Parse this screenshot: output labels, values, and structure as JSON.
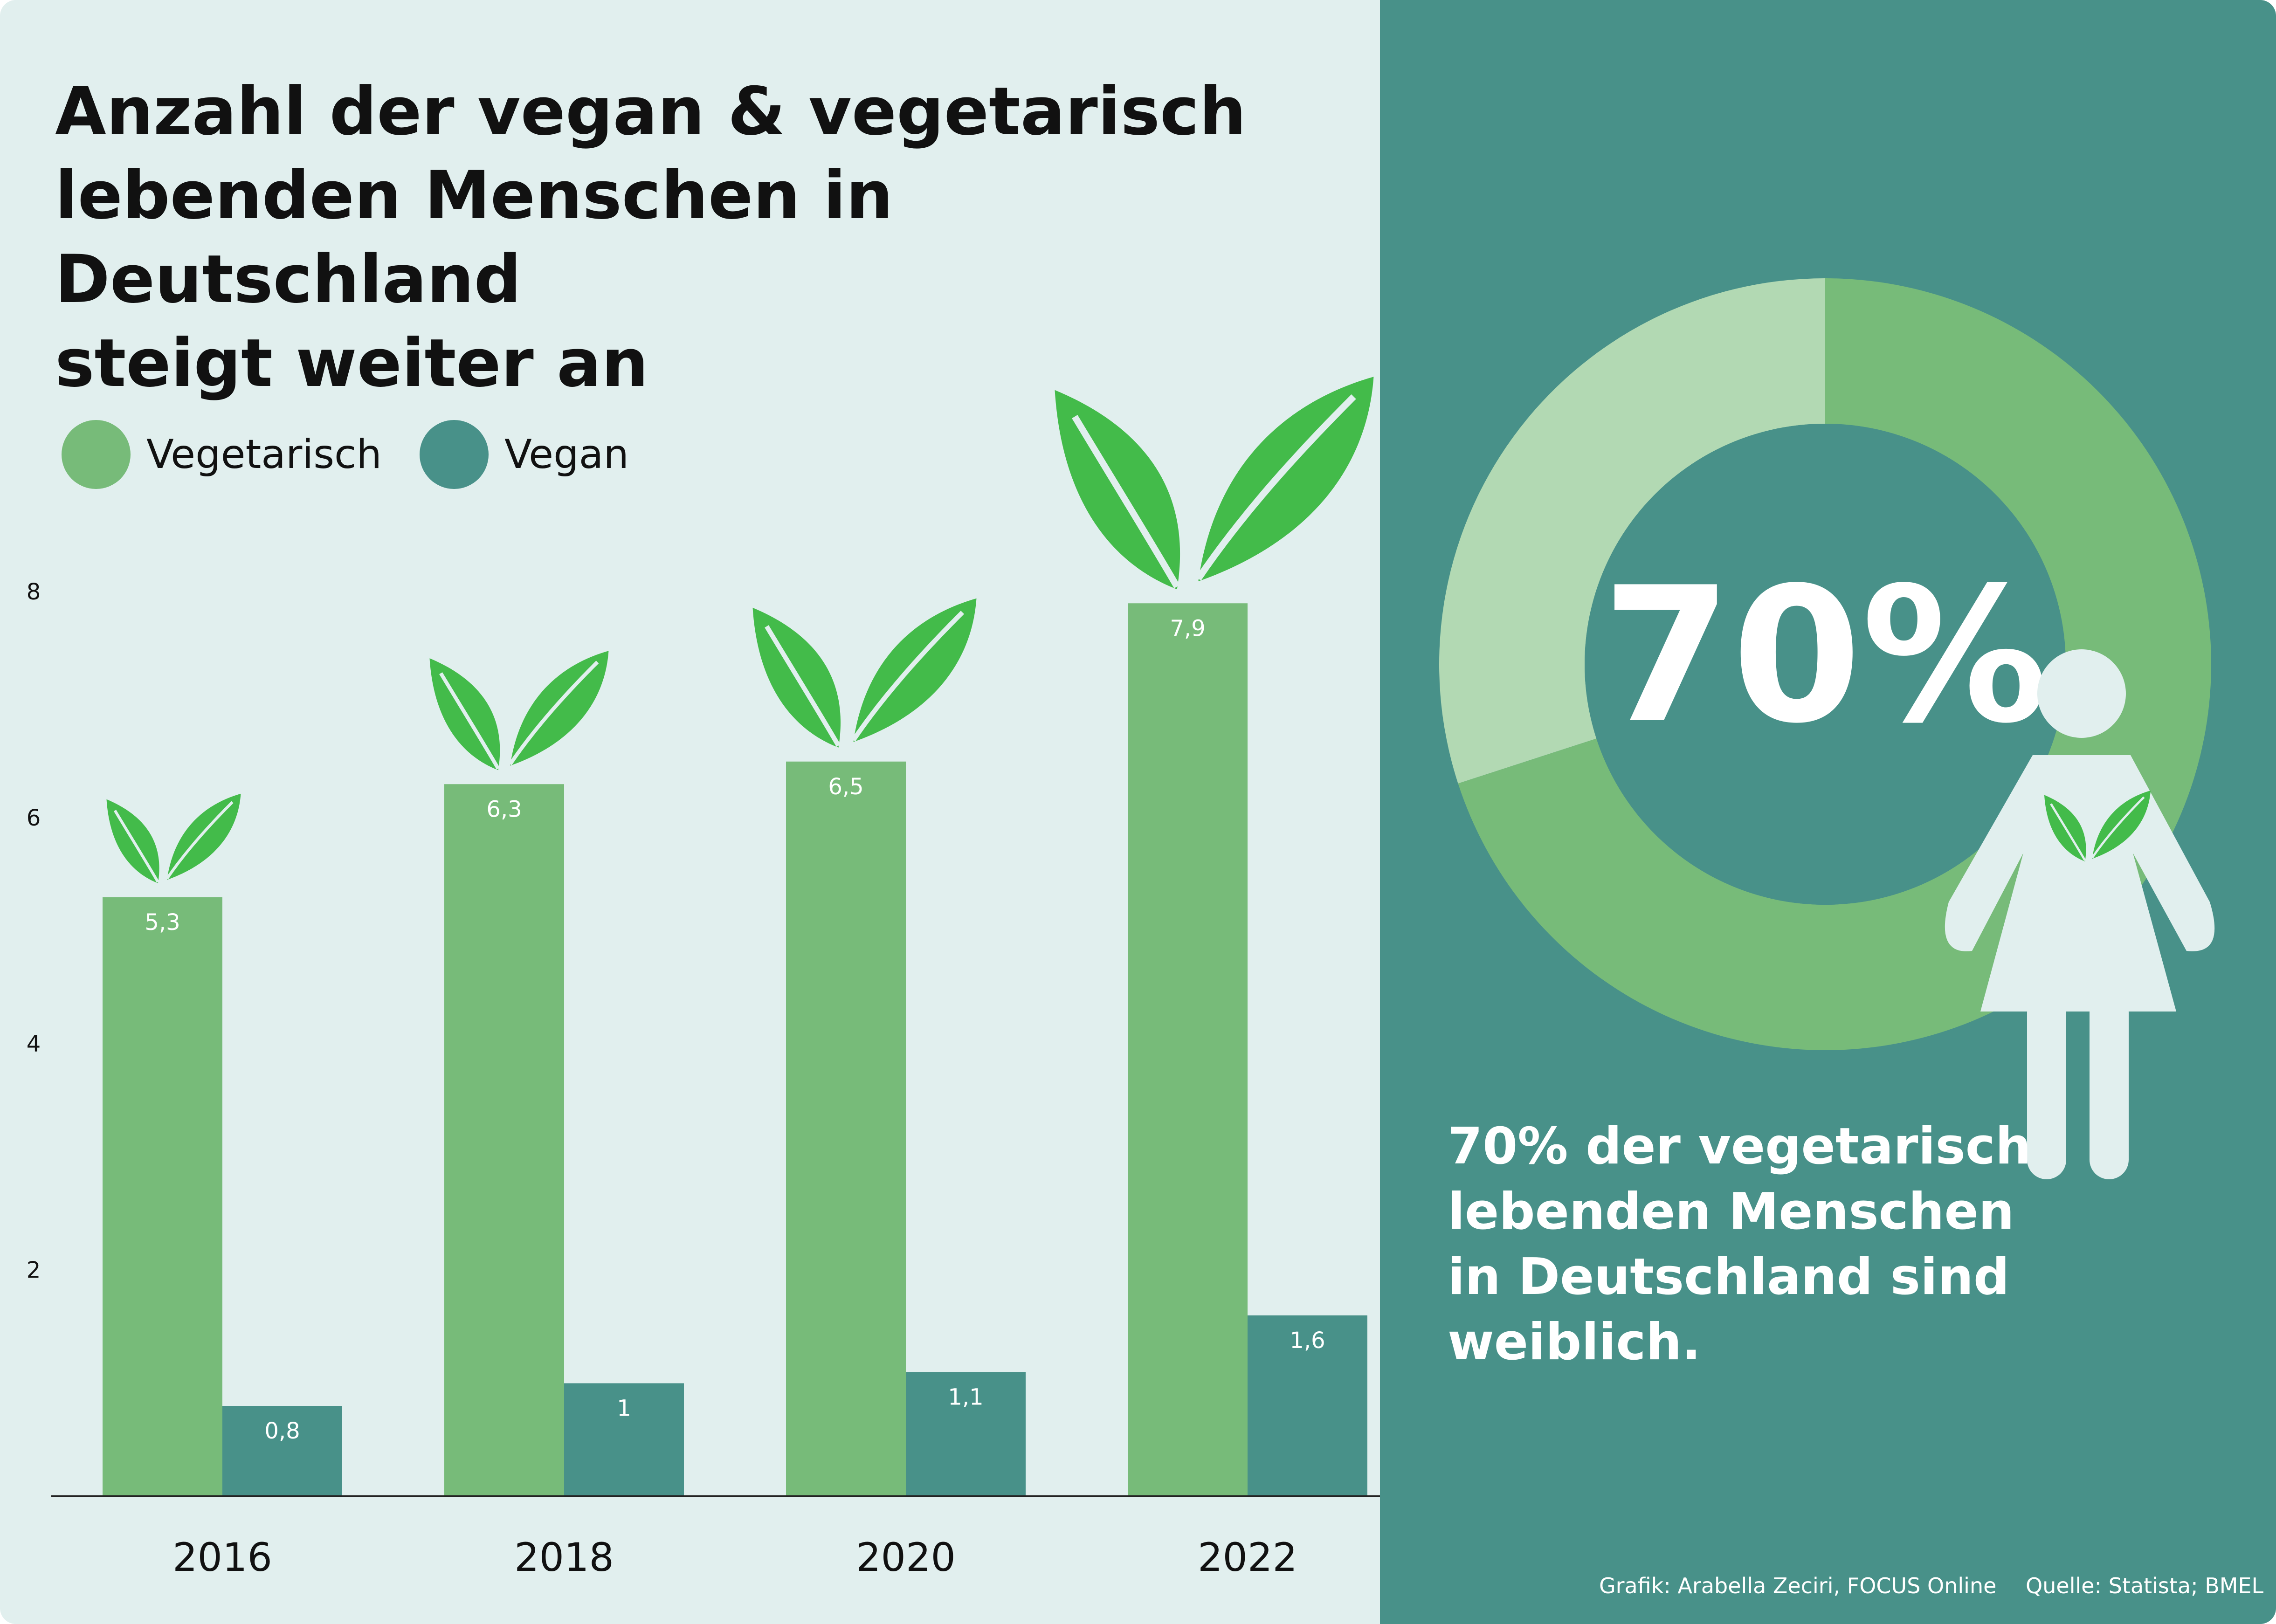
{
  "title": {
    "line1": "Anzahl der vegan & vegetarisch",
    "line2": "lebenden Menschen in Deutschland",
    "line3": "steigt weiter an"
  },
  "legend": [
    {
      "label": "Vegetarisch",
      "color": "#77bb79"
    },
    {
      "label": "Vegan",
      "color": "#489189"
    }
  ],
  "chart_data": {
    "type": "bar",
    "title": "Anzahl der vegan & vegetarisch lebenden Menschen in Deutschland steigt weiter an",
    "categories": [
      "2016",
      "2018",
      "2020",
      "2022"
    ],
    "series": [
      {
        "name": "Vegetarisch",
        "color": "#77bb79",
        "values": [
          5.3,
          6.3,
          6.5,
          7.9
        ],
        "labels": [
          "5,3",
          "6,3",
          "6,5",
          "7,9"
        ]
      },
      {
        "name": "Vegan",
        "color": "#489189",
        "values": [
          0.8,
          1.0,
          1.1,
          1.6
        ],
        "labels": [
          "0,8",
          "1",
          "1,1",
          "1,6"
        ]
      }
    ],
    "yticks": [
      "2",
      "4",
      "6",
      "8"
    ],
    "ylim": [
      0,
      8
    ],
    "xlabel": "",
    "ylabel": "",
    "legend_position": "top-left"
  },
  "donut": {
    "percent_label": "70%",
    "female_share": 70,
    "colors": {
      "major": "#77bb79",
      "minor": "#b2d9b3",
      "center": "#489189"
    }
  },
  "caption": {
    "line1": "70% der vegetarisch",
    "line2": "lebenden Menschen",
    "line3": "in Deutschland sind weiblich."
  },
  "credit": {
    "author": "Grafik: Arabella Zeciri, FOCUS Online",
    "source": "Quelle: Statista; BMEL"
  },
  "colors": {
    "left_background": "#e1efee",
    "right_background": "#489189",
    "leaf": "#43bb4a",
    "figure": "#e1efee"
  }
}
